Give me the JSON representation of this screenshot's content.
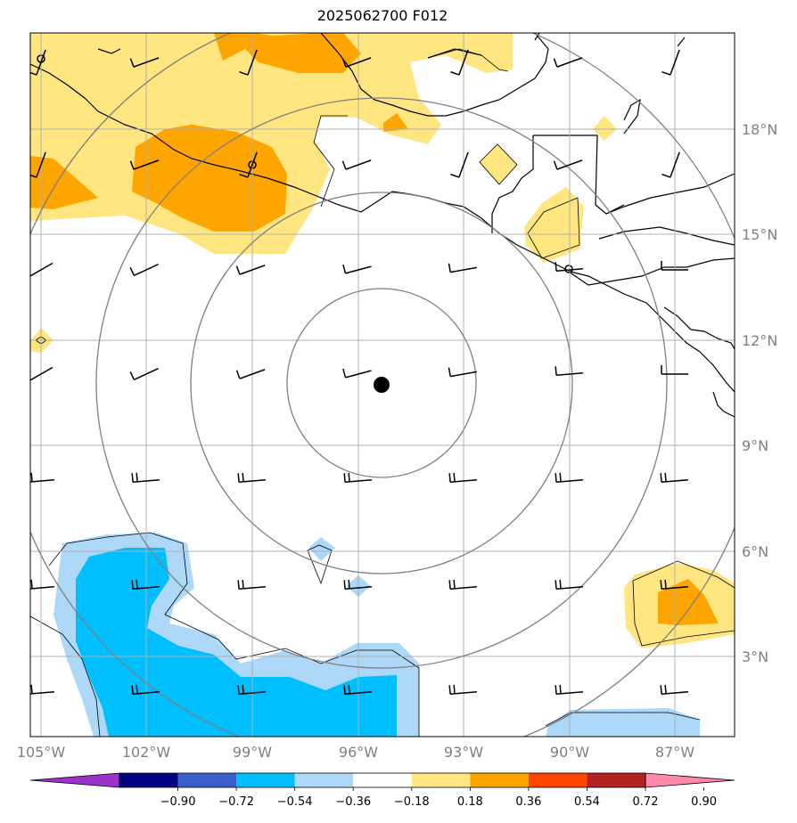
{
  "title": "2025062700 F012",
  "lon_labels": [
    "105°W",
    "102°W",
    "99°W",
    "96°W",
    "93°W",
    "90°W",
    "87°W"
  ],
  "lat_labels": [
    "18°N",
    "15°N",
    "12°N",
    "9°N",
    "6°N",
    "3°N"
  ],
  "colorbar": {
    "ticks": [
      "−0.90",
      "−0.72",
      "−0.54",
      "−0.36",
      "−0.18",
      "0.18",
      "0.36",
      "0.54",
      "0.72",
      "0.90"
    ],
    "colors": [
      "#9933cc",
      "#000080",
      "#3a5fcd",
      "#00bfff",
      "#add8f7",
      "#ffffff",
      "#ffe680",
      "#ffa500",
      "#ff4500",
      "#b22222",
      "#ff88aa"
    ]
  },
  "fill_colors": {
    "pos_1": "#ffe680",
    "pos_2": "#ffa500",
    "neg_1": "#add8f7",
    "neg_2": "#00bfff"
  },
  "center_marker": {
    "lon": -95.5,
    "lat": 10.7
  }
}
